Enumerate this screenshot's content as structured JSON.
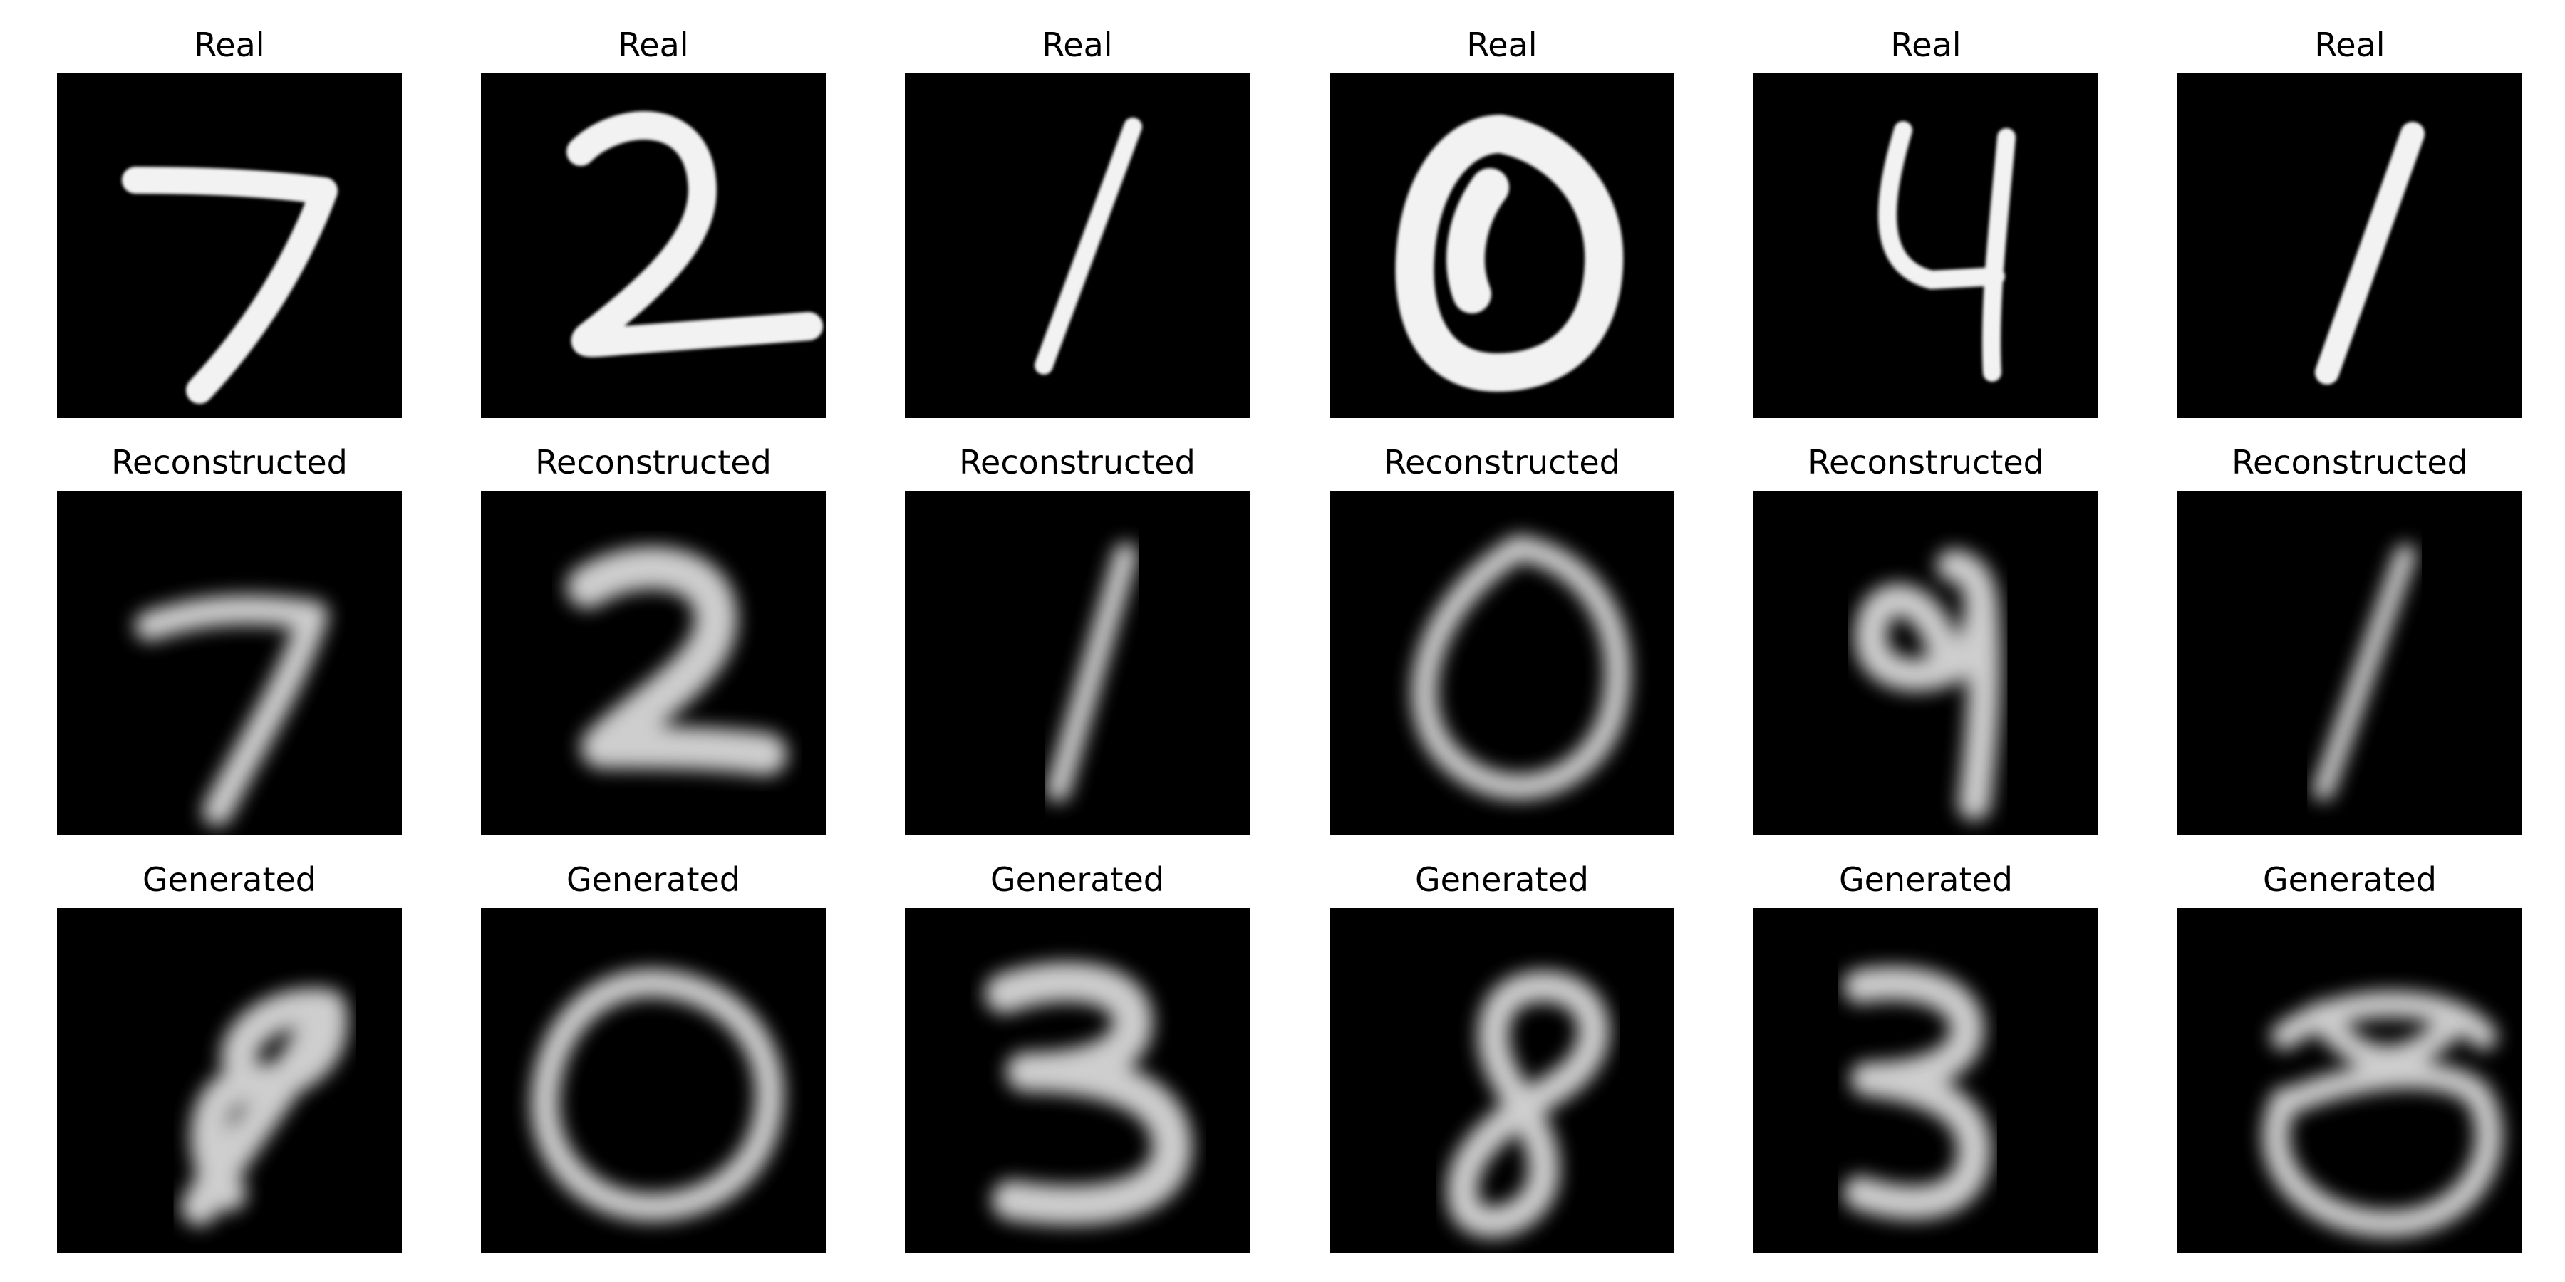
{
  "rows": [
    {
      "label": "Real",
      "style": "sharp",
      "panels": [
        {
          "title": "Real",
          "digit": "7"
        },
        {
          "title": "Real",
          "digit": "2"
        },
        {
          "title": "Real",
          "digit": "1"
        },
        {
          "title": "Real",
          "digit": "0"
        },
        {
          "title": "Real",
          "digit": "4"
        },
        {
          "title": "Real",
          "digit": "1"
        }
      ]
    },
    {
      "label": "Reconstructed",
      "style": "blurred",
      "panels": [
        {
          "title": "Reconstructed",
          "digit": "7"
        },
        {
          "title": "Reconstructed",
          "digit": "2"
        },
        {
          "title": "Reconstructed",
          "digit": "1"
        },
        {
          "title": "Reconstructed",
          "digit": "0"
        },
        {
          "title": "Reconstructed",
          "digit": "9"
        },
        {
          "title": "Reconstructed",
          "digit": "1"
        }
      ]
    },
    {
      "label": "Generated",
      "style": "blurred",
      "panels": [
        {
          "title": "Generated",
          "digit": "9"
        },
        {
          "title": "Generated",
          "digit": "0"
        },
        {
          "title": "Generated",
          "digit": "3"
        },
        {
          "title": "Generated",
          "digit": "8"
        },
        {
          "title": "Generated",
          "digit": "3"
        },
        {
          "title": "Generated",
          "digit": "0"
        }
      ]
    }
  ],
  "colors": {
    "background": "#000000",
    "stroke": "#f2f2f2",
    "figure_background": "#ffffff"
  }
}
